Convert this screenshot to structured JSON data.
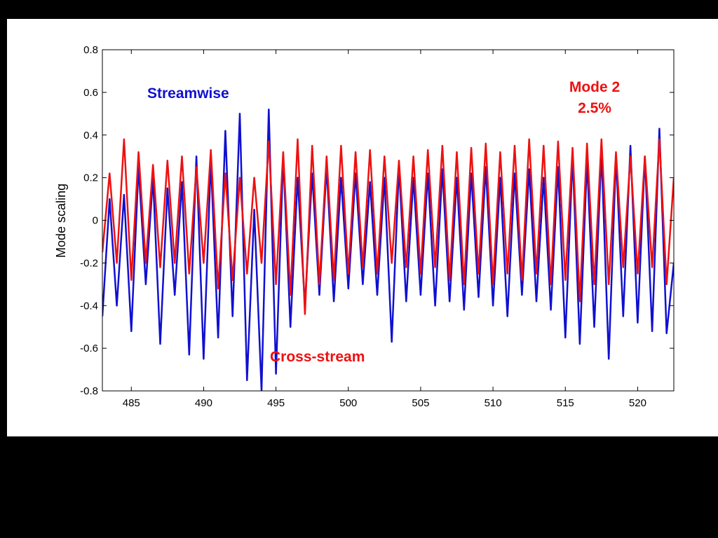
{
  "chart_data": {
    "type": "line",
    "title": "",
    "xlabel": "",
    "ylabel": "Mode scaling",
    "xlim": [
      483,
      522.5
    ],
    "ylim": [
      -0.8,
      0.8
    ],
    "x_ticks": [
      485,
      490,
      495,
      500,
      505,
      510,
      515,
      520
    ],
    "y_ticks": [
      0.8,
      0.6,
      0.4,
      0.2,
      0,
      -0.2,
      -0.4,
      -0.6,
      -0.8
    ],
    "x_tick_labels": [
      "485",
      "490",
      "495",
      "500",
      "505",
      "510",
      "515",
      "520"
    ],
    "y_tick_labels": [
      "0.8",
      "0.6",
      "0.4",
      "0.2",
      "0",
      "-0.2",
      "-0.4",
      "-0.6",
      "-0.8"
    ],
    "grid": false,
    "colors": {
      "blue_series": "#1010d0",
      "red_series": "#ee1111"
    },
    "annotations": {
      "streamwise": "Streamwise",
      "cross_stream": "Cross-stream",
      "mode_line1": "Mode 2",
      "mode_line2": "2.5%"
    },
    "series": [
      {
        "color": "#1010d0",
        "x": [
          483,
          483.5,
          484,
          484.5,
          485,
          485.5,
          486,
          486.5,
          487,
          487.5,
          488,
          488.5,
          489,
          489.5,
          490,
          490.5,
          491,
          491.5,
          492,
          492.5,
          493,
          493.5,
          494,
          494.5,
          495,
          495.5,
          496,
          496.5,
          497,
          497.5,
          498,
          498.5,
          499,
          499.5,
          500,
          500.5,
          501,
          501.5,
          502,
          502.5,
          503,
          503.5,
          504,
          504.5,
          505,
          505.5,
          506,
          506.5,
          507,
          507.5,
          508,
          508.5,
          509,
          509.5,
          510,
          510.5,
          511,
          511.5,
          512,
          512.5,
          513,
          513.5,
          514,
          514.5,
          515,
          515.5,
          516,
          516.5,
          517,
          517.5,
          518,
          518.5,
          519,
          519.5,
          520,
          520.5,
          521,
          521.5,
          522,
          522.5
        ],
        "values": [
          -0.45,
          0.1,
          -0.4,
          0.12,
          -0.52,
          0.25,
          -0.3,
          0.2,
          -0.58,
          0.15,
          -0.35,
          0.18,
          -0.63,
          0.3,
          -0.65,
          0.28,
          -0.55,
          0.42,
          -0.45,
          0.5,
          -0.75,
          0.05,
          -0.8,
          0.52,
          -0.72,
          0.3,
          -0.5,
          0.2,
          -0.4,
          0.22,
          -0.35,
          0.25,
          -0.38,
          0.2,
          -0.32,
          0.22,
          -0.3,
          0.18,
          -0.35,
          0.2,
          -0.57,
          0.25,
          -0.38,
          0.2,
          -0.35,
          0.22,
          -0.4,
          0.24,
          -0.38,
          0.2,
          -0.42,
          0.22,
          -0.36,
          0.25,
          -0.4,
          0.2,
          -0.45,
          0.22,
          -0.35,
          0.24,
          -0.38,
          0.2,
          -0.42,
          0.25,
          -0.55,
          0.3,
          -0.58,
          0.28,
          -0.5,
          0.32,
          -0.65,
          0.3,
          -0.45,
          0.35,
          -0.48,
          0.3,
          -0.52,
          0.43,
          -0.53,
          -0.2
        ]
      },
      {
        "color": "#ee1111",
        "x": [
          483,
          483.5,
          484,
          484.5,
          485,
          485.5,
          486,
          486.5,
          487,
          487.5,
          488,
          488.5,
          489,
          489.5,
          490,
          490.5,
          491,
          491.5,
          492,
          492.5,
          493,
          493.5,
          494,
          494.5,
          495,
          495.5,
          496,
          496.5,
          497,
          497.5,
          498,
          498.5,
          499,
          499.5,
          500,
          500.5,
          501,
          501.5,
          502,
          502.5,
          503,
          503.5,
          504,
          504.5,
          505,
          505.5,
          506,
          506.5,
          507,
          507.5,
          508,
          508.5,
          509,
          509.5,
          510,
          510.5,
          511,
          511.5,
          512,
          512.5,
          513,
          513.5,
          514,
          514.5,
          515,
          515.5,
          516,
          516.5,
          517,
          517.5,
          518,
          518.5,
          519,
          519.5,
          520,
          520.5,
          521,
          521.5,
          522,
          522.5
        ],
        "values": [
          -0.15,
          0.22,
          -0.2,
          0.38,
          -0.28,
          0.32,
          -0.2,
          0.26,
          -0.22,
          0.28,
          -0.2,
          0.3,
          -0.25,
          0.25,
          -0.2,
          0.33,
          -0.32,
          0.22,
          -0.28,
          0.2,
          -0.25,
          0.2,
          -0.2,
          0.37,
          -0.3,
          0.32,
          -0.35,
          0.38,
          -0.44,
          0.35,
          -0.3,
          0.3,
          -0.28,
          0.35,
          -0.25,
          0.32,
          -0.22,
          0.33,
          -0.25,
          0.3,
          -0.2,
          0.28,
          -0.22,
          0.3,
          -0.25,
          0.33,
          -0.22,
          0.35,
          -0.28,
          0.32,
          -0.3,
          0.34,
          -0.25,
          0.36,
          -0.3,
          0.32,
          -0.25,
          0.35,
          -0.28,
          0.38,
          -0.25,
          0.35,
          -0.3,
          0.37,
          -0.28,
          0.34,
          -0.38,
          0.36,
          -0.3,
          0.38,
          -0.3,
          0.32,
          -0.22,
          0.3,
          -0.25,
          0.3,
          -0.22,
          0.38,
          -0.3,
          0.2
        ]
      }
    ]
  }
}
